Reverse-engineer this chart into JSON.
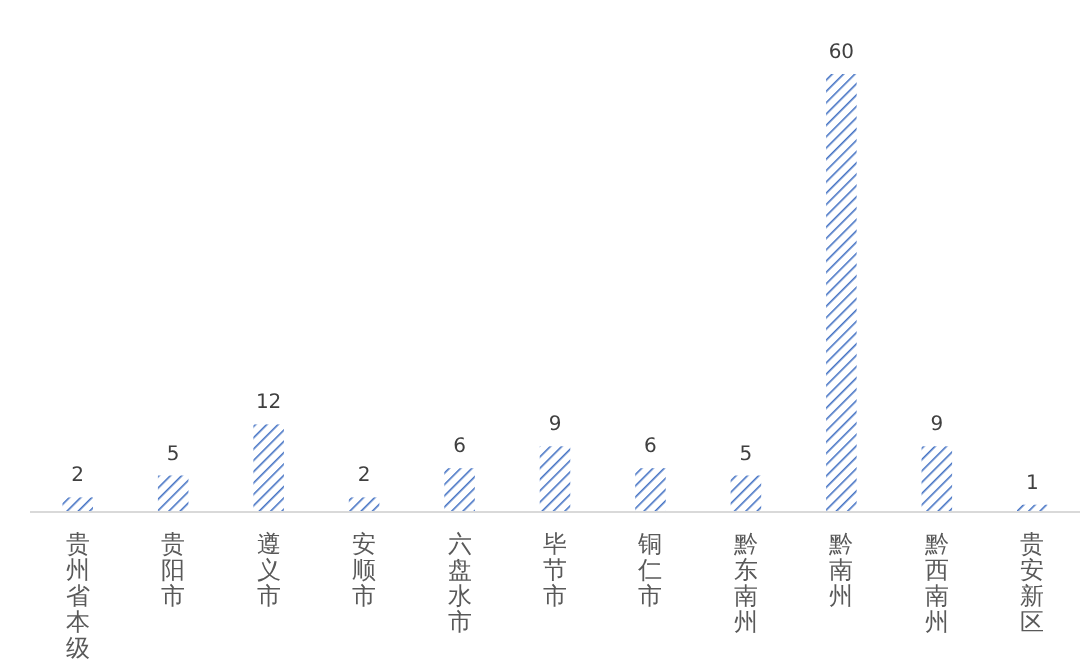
{
  "chart_data": {
    "type": "bar",
    "categories": [
      "贵州省本级",
      "贵阳市",
      "遵义市",
      "安顺市",
      "六盘水市",
      "毕节市",
      "铜仁市",
      "黔东南州",
      "黔南州",
      "黔西南州",
      "贵安新区"
    ],
    "values": [
      2,
      5,
      12,
      2,
      6,
      9,
      6,
      5,
      60,
      9,
      1
    ],
    "color": "#4472c4",
    "data_labels": true
  }
}
